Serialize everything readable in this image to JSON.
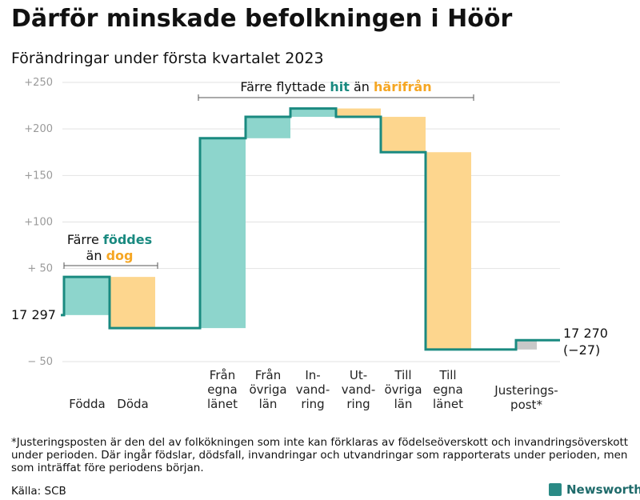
{
  "title": "Därför minskade befolkningen i Höör",
  "subtitle": "Förändringar under första kvartalet 2023",
  "footnote": "*Justeringsposten är den del av folkökningen som inte kan förklaras av födelseöverskott och invandringsöverskott under perioden. Där ingår födslar, dödsfall, invandringar och utvandringar som rapporterats under perioden, men som inträffat före periodens början.",
  "source": "Källa: SCB",
  "brand": "Newsworthy",
  "colors": {
    "increase": "#8dd5cc",
    "decrease": "#fdd68e",
    "adjustment": "#c8c8c8",
    "line": "#1a8a80",
    "hit_text": "#1a8a80",
    "harifran_text": "#f5a623"
  },
  "annotations": {
    "birth": {
      "line1": "Färre",
      "highlight1": "föddes",
      "line2_pre": "än",
      "highlight2": "dog"
    },
    "move": {
      "pre": "Färre flyttade",
      "highlight1": "hit",
      "mid": "än",
      "highlight2": "härifrån"
    }
  },
  "chart_data": {
    "type": "waterfall",
    "title": "Därför minskade befolkningen i Höör",
    "subtitle": "Förändringar under första kvartalet 2023",
    "yticks": [
      "+250",
      "+200",
      "+150",
      "+100",
      "+ 50",
      "− 50"
    ],
    "ylim": [
      -50,
      250
    ],
    "grid": true,
    "start_label": "17 297",
    "end_label": "17 270",
    "end_change": "(−27)",
    "steps": [
      {
        "label": [
          "Födda"
        ],
        "from": 0,
        "to": 41,
        "kind": "increase"
      },
      {
        "label": [
          "Döda"
        ],
        "from": 41,
        "to": -14,
        "kind": "decrease"
      },
      {
        "label": [
          "Från",
          "egna",
          "länet"
        ],
        "from": -14,
        "to": 190,
        "kind": "increase"
      },
      {
        "label": [
          "Från",
          "övriga",
          "län"
        ],
        "from": 190,
        "to": 213,
        "kind": "increase"
      },
      {
        "label": [
          "In-",
          "vand-",
          "ring"
        ],
        "from": 213,
        "to": 222,
        "kind": "increase"
      },
      {
        "label": [
          "Ut-",
          "vand-",
          "ring"
        ],
        "from": 222,
        "to": 213,
        "kind": "decrease"
      },
      {
        "label": [
          "Till",
          "övriga",
          "län"
        ],
        "from": 213,
        "to": 175,
        "kind": "decrease"
      },
      {
        "label": [
          "Till",
          "egna",
          "länet"
        ],
        "from": 175,
        "to": -37,
        "kind": "decrease"
      },
      {
        "label": [
          "Justerings-",
          "post*"
        ],
        "from": -37,
        "to": -27,
        "kind": "adjustment"
      }
    ]
  }
}
